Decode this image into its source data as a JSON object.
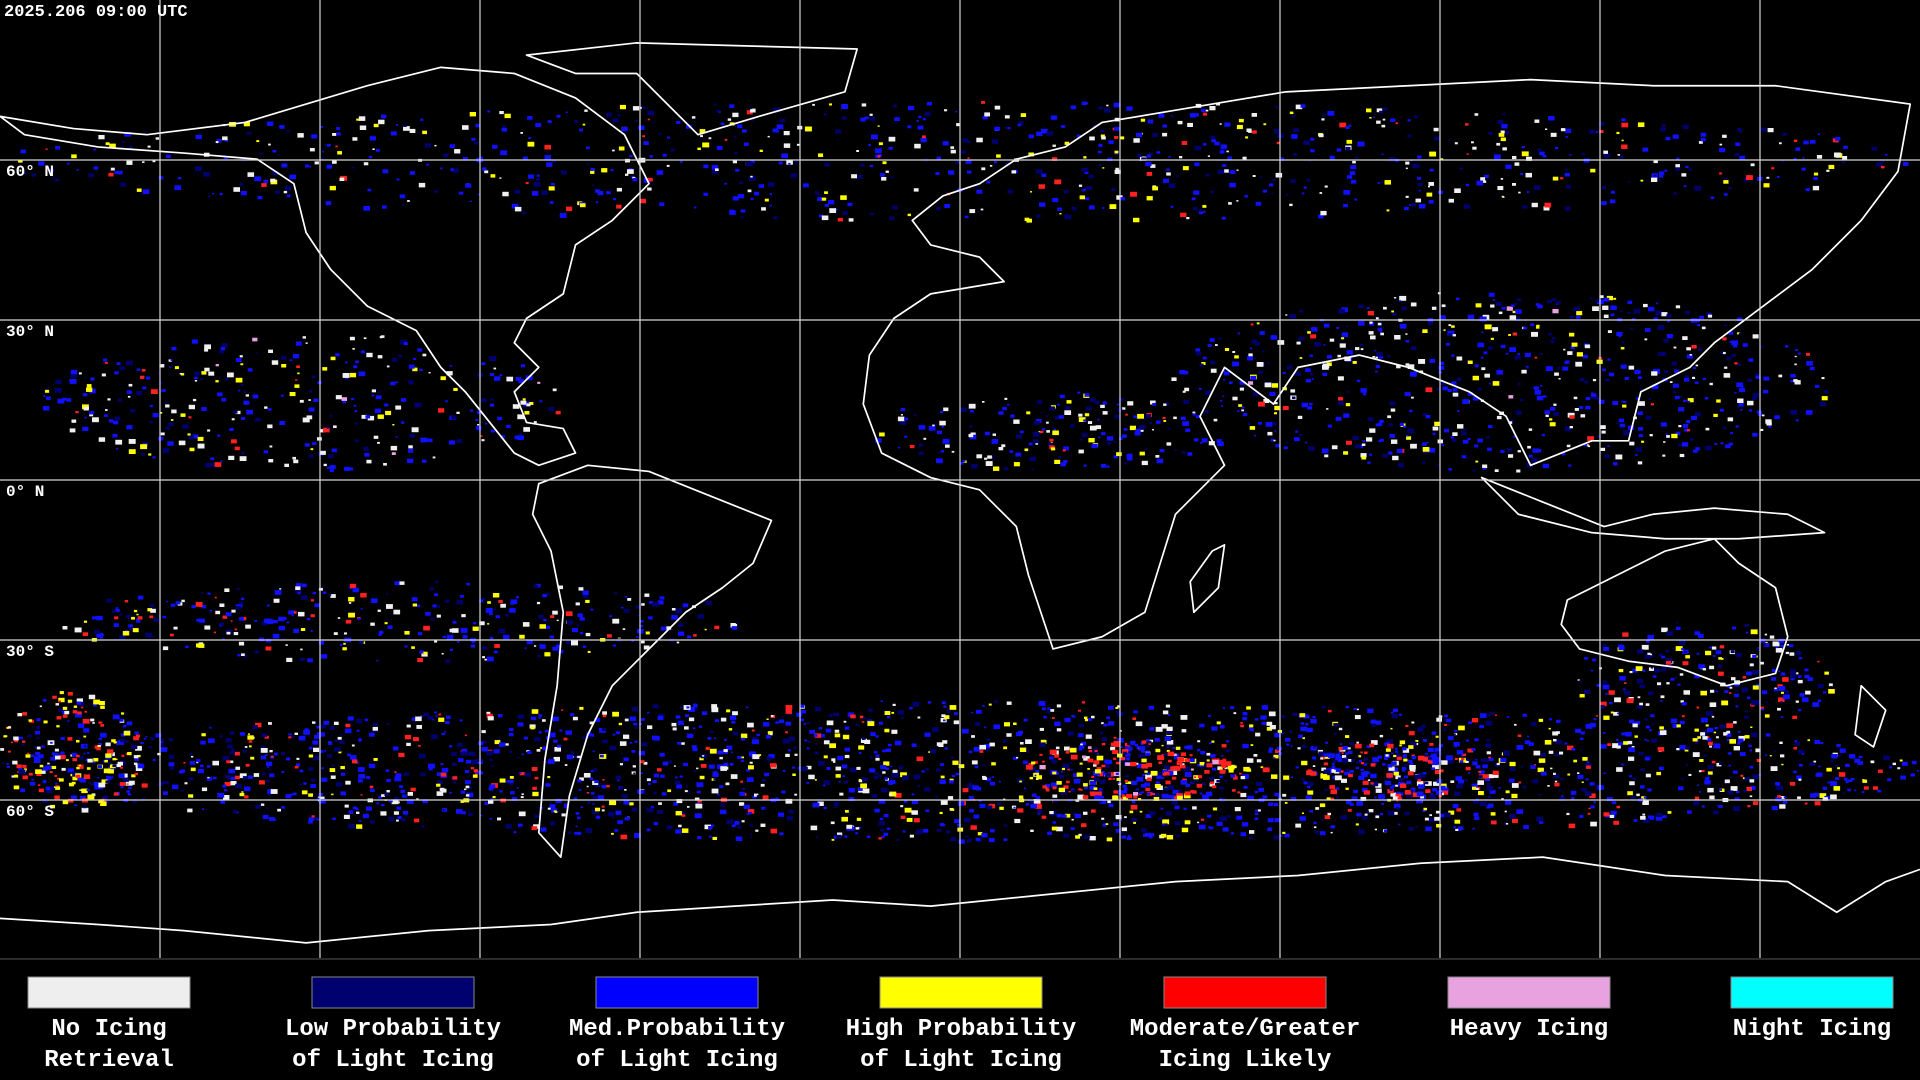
{
  "header": {
    "timestamp": "2025.206 09:00 UTC"
  },
  "latitude_labels": [
    "60° N",
    "30° N",
    "0° N",
    "30° S",
    "60° S"
  ],
  "legend": [
    {
      "color": "#eeeeee",
      "label": [
        "No Icing",
        "Retrieval"
      ]
    },
    {
      "color": "#00006e",
      "label": [
        "Low Probability",
        "of Light Icing"
      ]
    },
    {
      "color": "#0000ff",
      "label": [
        "Med.Probability",
        "of Light Icing"
      ]
    },
    {
      "color": "#ffff00",
      "label": [
        "High Probability",
        "of Light Icing"
      ]
    },
    {
      "color": "#ff0000",
      "label": [
        "Moderate/Greater",
        "Icing Likely"
      ]
    },
    {
      "color": "#e8a2e0",
      "label": [
        "Heavy Icing"
      ]
    },
    {
      "color": "#00ffff",
      "label": [
        "Night Icing"
      ]
    }
  ]
}
